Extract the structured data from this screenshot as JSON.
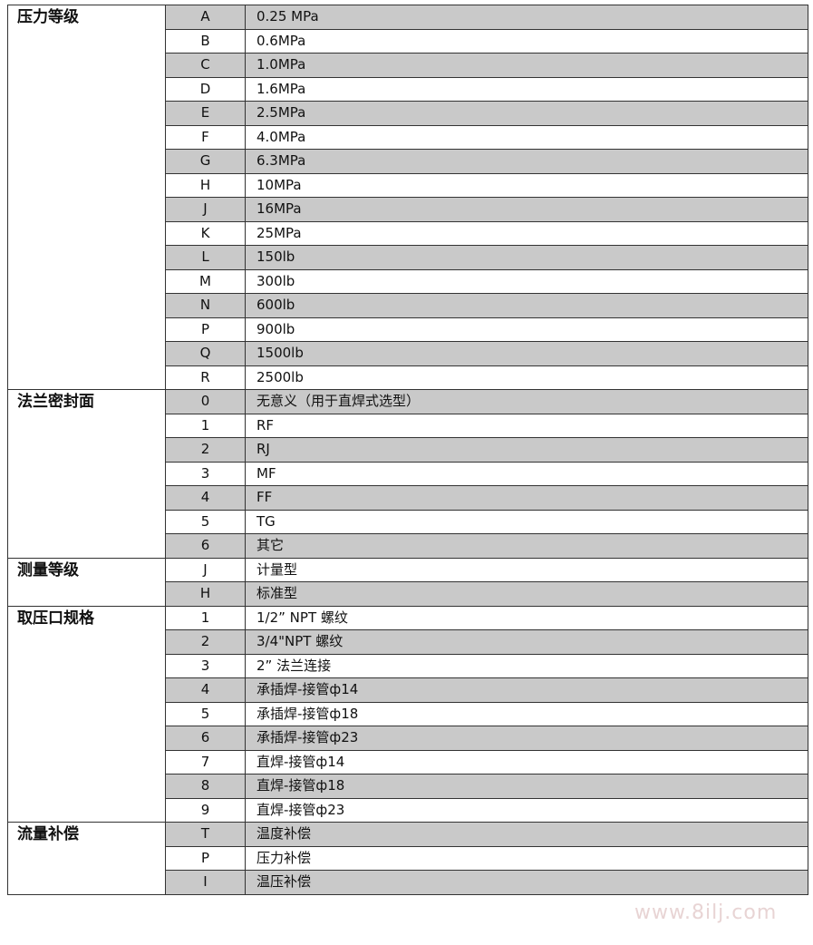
{
  "groups": [
    {
      "category": "压力等级",
      "rows": [
        {
          "code": "A",
          "desc": "0.25 MPa"
        },
        {
          "code": "B",
          "desc": "0.6MPa"
        },
        {
          "code": "C",
          "desc": "1.0MPa"
        },
        {
          "code": "D",
          "desc": "1.6MPa"
        },
        {
          "code": "E",
          "desc": "2.5MPa"
        },
        {
          "code": "F",
          "desc": "4.0MPa"
        },
        {
          "code": "G",
          "desc": "6.3MPa"
        },
        {
          "code": "H",
          "desc": "10MPa"
        },
        {
          "code": "J",
          "desc": "16MPa"
        },
        {
          "code": "K",
          "desc": "25MPa"
        },
        {
          "code": "L",
          "desc": "150lb"
        },
        {
          "code": "M",
          "desc": "300lb"
        },
        {
          "code": "N",
          "desc": "600lb"
        },
        {
          "code": "P",
          "desc": "900lb"
        },
        {
          "code": "Q",
          "desc": "1500lb"
        },
        {
          "code": "R",
          "desc": "2500lb"
        }
      ]
    },
    {
      "category": "法兰密封面",
      "rows": [
        {
          "code": "0",
          "desc": "无意义（用于直焊式选型）"
        },
        {
          "code": "1",
          "desc": "RF"
        },
        {
          "code": "2",
          "desc": "RJ"
        },
        {
          "code": "3",
          "desc": "MF"
        },
        {
          "code": "4",
          "desc": "FF"
        },
        {
          "code": "5",
          "desc": "TG"
        },
        {
          "code": "6",
          "desc": "其它"
        }
      ]
    },
    {
      "category": "测量等级",
      "rows": [
        {
          "code": "J",
          "desc": "计量型"
        },
        {
          "code": "H",
          "desc": "标准型"
        }
      ]
    },
    {
      "category": "取压口规格",
      "rows": [
        {
          "code": "1",
          "desc": "1/2” NPT 螺纹"
        },
        {
          "code": "2",
          "desc": "3/4\"NPT 螺纹"
        },
        {
          "code": "3",
          "desc": "2” 法兰连接"
        },
        {
          "code": "4",
          "desc": "承插焊-接管ф14"
        },
        {
          "code": "5",
          "desc": "承插焊-接管ф18"
        },
        {
          "code": "6",
          "desc": "承插焊-接管ф23"
        },
        {
          "code": "7",
          "desc": "直焊-接管ф14"
        },
        {
          "code": "8",
          "desc": "直焊-接管ф18"
        },
        {
          "code": "9",
          "desc": "直焊-接管ф23"
        }
      ]
    },
    {
      "category": "流量补偿",
      "rows": [
        {
          "code": "T",
          "desc": "温度补偿"
        },
        {
          "code": "P",
          "desc": "压力补偿"
        },
        {
          "code": "I",
          "desc": "温压补偿"
        }
      ]
    }
  ],
  "watermark": "www.8ilj.com"
}
